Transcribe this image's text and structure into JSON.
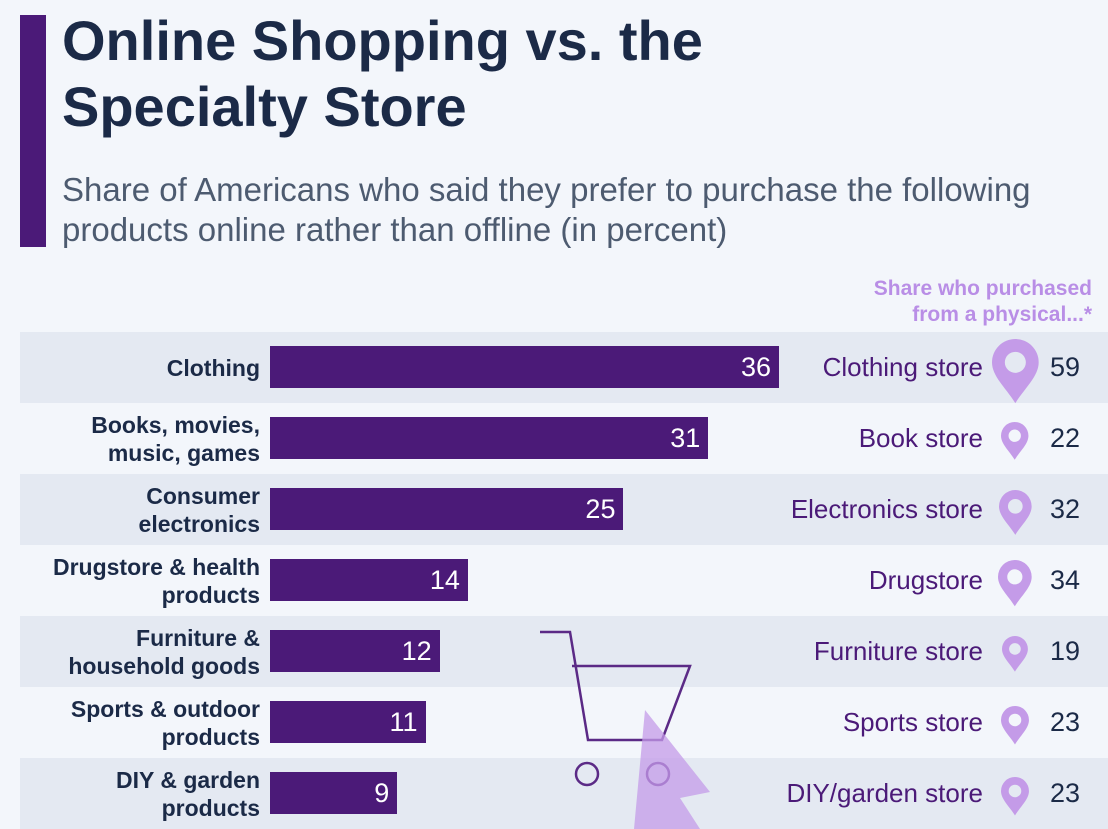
{
  "chart_data": {
    "type": "bar",
    "title": "Online Shopping vs. the Specialty Store",
    "subtitle": "Share of Americans who said they prefer to purchase the following products online rather than offline (in percent)",
    "categories": [
      "Clothing",
      "Books, movies, music, games",
      "Consumer electronics",
      "Drugstore & health products",
      "Furniture & household goods",
      "Sports & outdoor products",
      "DIY & garden products"
    ],
    "values": [
      36,
      31,
      25,
      14,
      12,
      11,
      9
    ],
    "color": "#4b1a78",
    "side": {
      "title": "Share who purchased from a physical...*",
      "stores": [
        "Clothing store",
        "Book store",
        "Electronics store",
        "Drugstore",
        "Furniture store",
        "Sports store",
        "DIY/garden store"
      ],
      "values": [
        59,
        22,
        32,
        34,
        19,
        23,
        23
      ],
      "color": "#c49be8"
    }
  }
}
